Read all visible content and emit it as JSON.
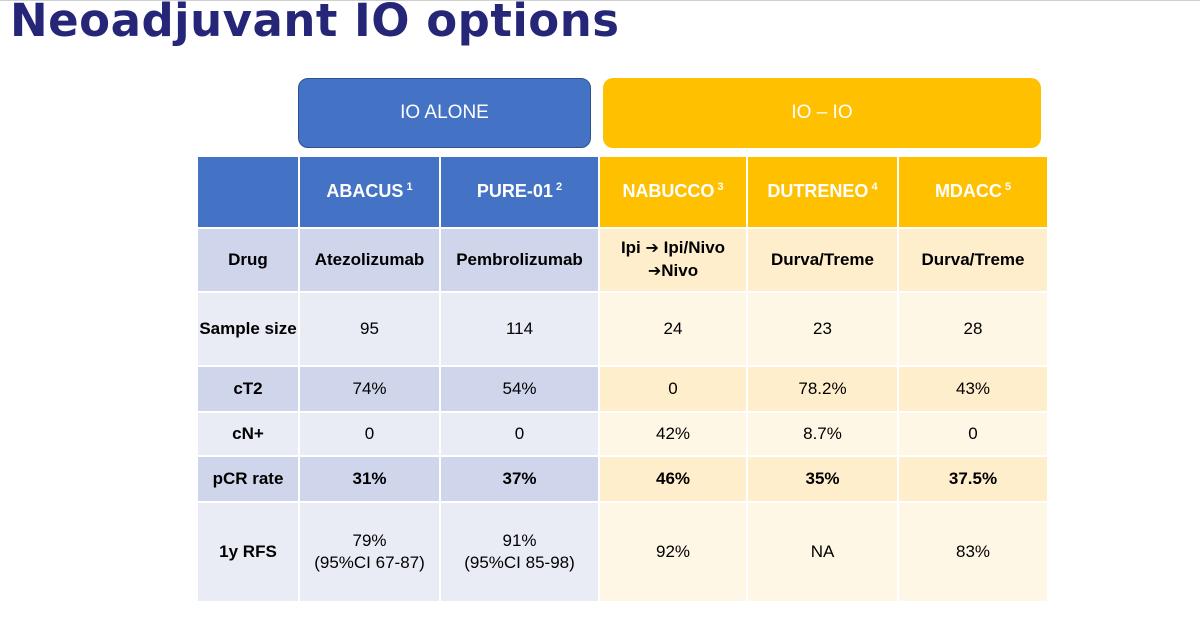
{
  "title": "Neoadjuvant IO options",
  "groups": {
    "io_alone": "IO ALONE",
    "io_io": "IO – IO"
  },
  "columns": [
    {
      "name": "ABACUS",
      "ref": "1"
    },
    {
      "name": "PURE-01",
      "ref": "2"
    },
    {
      "name": "NABUCCO",
      "ref": "3"
    },
    {
      "name": "DUTRENEO",
      "ref": "4"
    },
    {
      "name": "MDACC",
      "ref": "5"
    }
  ],
  "rows": {
    "drug": {
      "label": "Drug",
      "values": [
        "Atezolizumab",
        "Pembrolizumab",
        "",
        "Durva/Treme",
        "Durva/Treme"
      ],
      "nabucco_line1": "Ipi",
      "nabucco_line1b": "Ipi/Nivo",
      "nabucco_line2": "Nivo"
    },
    "sample_size": {
      "label": "Sample size",
      "values": [
        "95",
        "114",
        "24",
        "23",
        "28"
      ]
    },
    "ct2": {
      "label": "cT2",
      "values": [
        "74%",
        "54%",
        "0",
        "78.2%",
        "43%"
      ]
    },
    "cn": {
      "label": "cN+",
      "values": [
        "0",
        "0",
        "42%",
        "8.7%",
        "0"
      ]
    },
    "pcr": {
      "label": "pCR rate",
      "values": [
        "31%",
        "37%",
        "46%",
        "35%",
        "37.5%"
      ]
    },
    "rfs": {
      "label": "1y RFS",
      "values": [
        "79%",
        "91%",
        "92%",
        "NA",
        "83%"
      ],
      "ci": [
        "(95%CI 67-87)",
        "(95%CI 85-98)"
      ]
    }
  }
}
